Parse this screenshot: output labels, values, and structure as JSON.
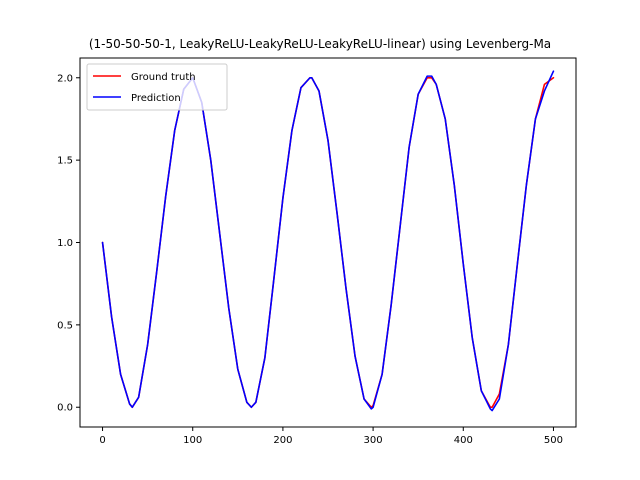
{
  "chart_data": {
    "type": "line",
    "title": "(1-50-50-50-1, LeakyReLU-LeakyReLU-LeakyReLU-linear) using Levenberg-Ma",
    "xlabel": "",
    "ylabel": "",
    "xlim": [
      -25,
      525
    ],
    "ylim": [
      -0.12,
      2.12
    ],
    "xticks": [
      0,
      100,
      200,
      300,
      400,
      500
    ],
    "yticks": [
      0.0,
      0.5,
      1.0,
      1.5,
      2.0
    ],
    "ytick_labels": [
      "0.0",
      "0.5",
      "1.0",
      "1.5",
      "2.0"
    ],
    "legend_position": "top-left",
    "grid": false,
    "series": [
      {
        "name": "Ground truth",
        "color": "#ff0000",
        "x": [
          0,
          10,
          20,
          30,
          33,
          40,
          50,
          60,
          70,
          80,
          90,
          100,
          110,
          120,
          130,
          140,
          150,
          160,
          165,
          170,
          180,
          190,
          200,
          210,
          220,
          230,
          232,
          240,
          250,
          260,
          270,
          280,
          290,
          298,
          300,
          310,
          320,
          330,
          340,
          350,
          360,
          365,
          370,
          380,
          390,
          400,
          410,
          420,
          430,
          432,
          440,
          450,
          460,
          470,
          480,
          490,
          500
        ],
        "y": [
          1.0,
          0.55,
          0.2,
          0.02,
          0.0,
          0.06,
          0.38,
          0.82,
          1.28,
          1.68,
          1.93,
          2.0,
          1.85,
          1.5,
          1.05,
          0.6,
          0.23,
          0.03,
          0.0,
          0.03,
          0.3,
          0.78,
          1.27,
          1.68,
          1.94,
          2.0,
          2.0,
          1.92,
          1.62,
          1.18,
          0.72,
          0.31,
          0.05,
          0.0,
          0.01,
          0.2,
          0.62,
          1.1,
          1.58,
          1.9,
          2.0,
          2.0,
          1.96,
          1.75,
          1.35,
          0.87,
          0.42,
          0.1,
          0.0,
          0.0,
          0.08,
          0.38,
          0.87,
          1.35,
          1.75,
          1.96,
          2.0
        ]
      },
      {
        "name": "Prediction",
        "color": "#0000ff",
        "x": [
          0,
          10,
          20,
          30,
          33,
          40,
          50,
          60,
          70,
          80,
          90,
          100,
          110,
          120,
          130,
          140,
          150,
          160,
          165,
          170,
          180,
          190,
          200,
          210,
          220,
          230,
          232,
          240,
          250,
          260,
          270,
          280,
          290,
          298,
          300,
          310,
          320,
          330,
          340,
          350,
          360,
          365,
          370,
          380,
          390,
          400,
          410,
          420,
          430,
          432,
          440,
          450,
          460,
          470,
          480,
          490,
          500
        ],
        "y": [
          1.0,
          0.55,
          0.2,
          0.02,
          0.0,
          0.06,
          0.38,
          0.82,
          1.28,
          1.68,
          1.93,
          2.0,
          1.85,
          1.5,
          1.05,
          0.6,
          0.23,
          0.03,
          0.0,
          0.03,
          0.3,
          0.78,
          1.27,
          1.68,
          1.94,
          2.0,
          2.0,
          1.92,
          1.62,
          1.18,
          0.72,
          0.31,
          0.05,
          -0.01,
          0.0,
          0.2,
          0.62,
          1.1,
          1.58,
          1.9,
          2.01,
          2.01,
          1.96,
          1.75,
          1.35,
          0.87,
          0.42,
          0.1,
          -0.01,
          -0.02,
          0.05,
          0.38,
          0.87,
          1.35,
          1.75,
          1.92,
          2.04
        ]
      }
    ]
  }
}
